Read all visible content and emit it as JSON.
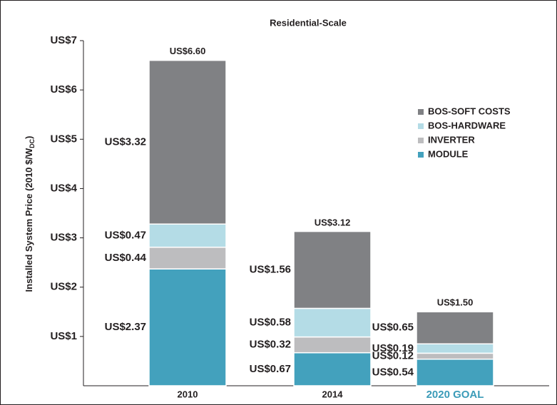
{
  "chart_data": {
    "type": "stacked_bar",
    "title": "Residential-Scale",
    "y_label": {
      "text": "Installed System Price (2010 $/W",
      "subscript": "DC",
      "suffix": ")"
    },
    "categories": [
      "2010",
      "2014",
      "2020 GOAL"
    ],
    "category_label_colors": [
      "#231f20",
      "#231f20",
      "#3b9bb8"
    ],
    "series": [
      {
        "name": "MODULE",
        "color": "#43a1bd",
        "values": [
          2.37,
          0.67,
          0.54
        ],
        "value_labels": [
          "US$2.37",
          "US$0.67",
          "US$0.54"
        ]
      },
      {
        "name": "INVERTER",
        "color": "#bdbdbf",
        "values": [
          0.44,
          0.32,
          0.12
        ],
        "value_labels": [
          "US$0.44",
          "US$0.32",
          "US$0.12"
        ]
      },
      {
        "name": "BOS-HARDWARE",
        "color": "#b4dce6",
        "values": [
          0.47,
          0.58,
          0.19
        ],
        "value_labels": [
          "US$0.47",
          "US$0.58",
          "US$0.19"
        ]
      },
      {
        "name": "BOS-SOFT COSTS",
        "color": "#808184",
        "values": [
          3.32,
          1.56,
          0.65
        ],
        "value_labels": [
          "US$3.32",
          "US$1.56",
          "US$0.65"
        ]
      }
    ],
    "totals": {
      "values": [
        6.6,
        3.12,
        1.5
      ],
      "value_labels": [
        "US$6.60",
        "US$3.12",
        "US$1.50"
      ]
    },
    "ylim": [
      0,
      7
    ],
    "yticks": [
      {
        "value": 1,
        "label": "US$1"
      },
      {
        "value": 2,
        "label": "US$2"
      },
      {
        "value": 3,
        "label": "US$3"
      },
      {
        "value": 4,
        "label": "US$4"
      },
      {
        "value": 5,
        "label": "US$5"
      },
      {
        "value": 6,
        "label": "US$6"
      },
      {
        "value": 7,
        "label": "US$7"
      }
    ],
    "grid": false
  }
}
